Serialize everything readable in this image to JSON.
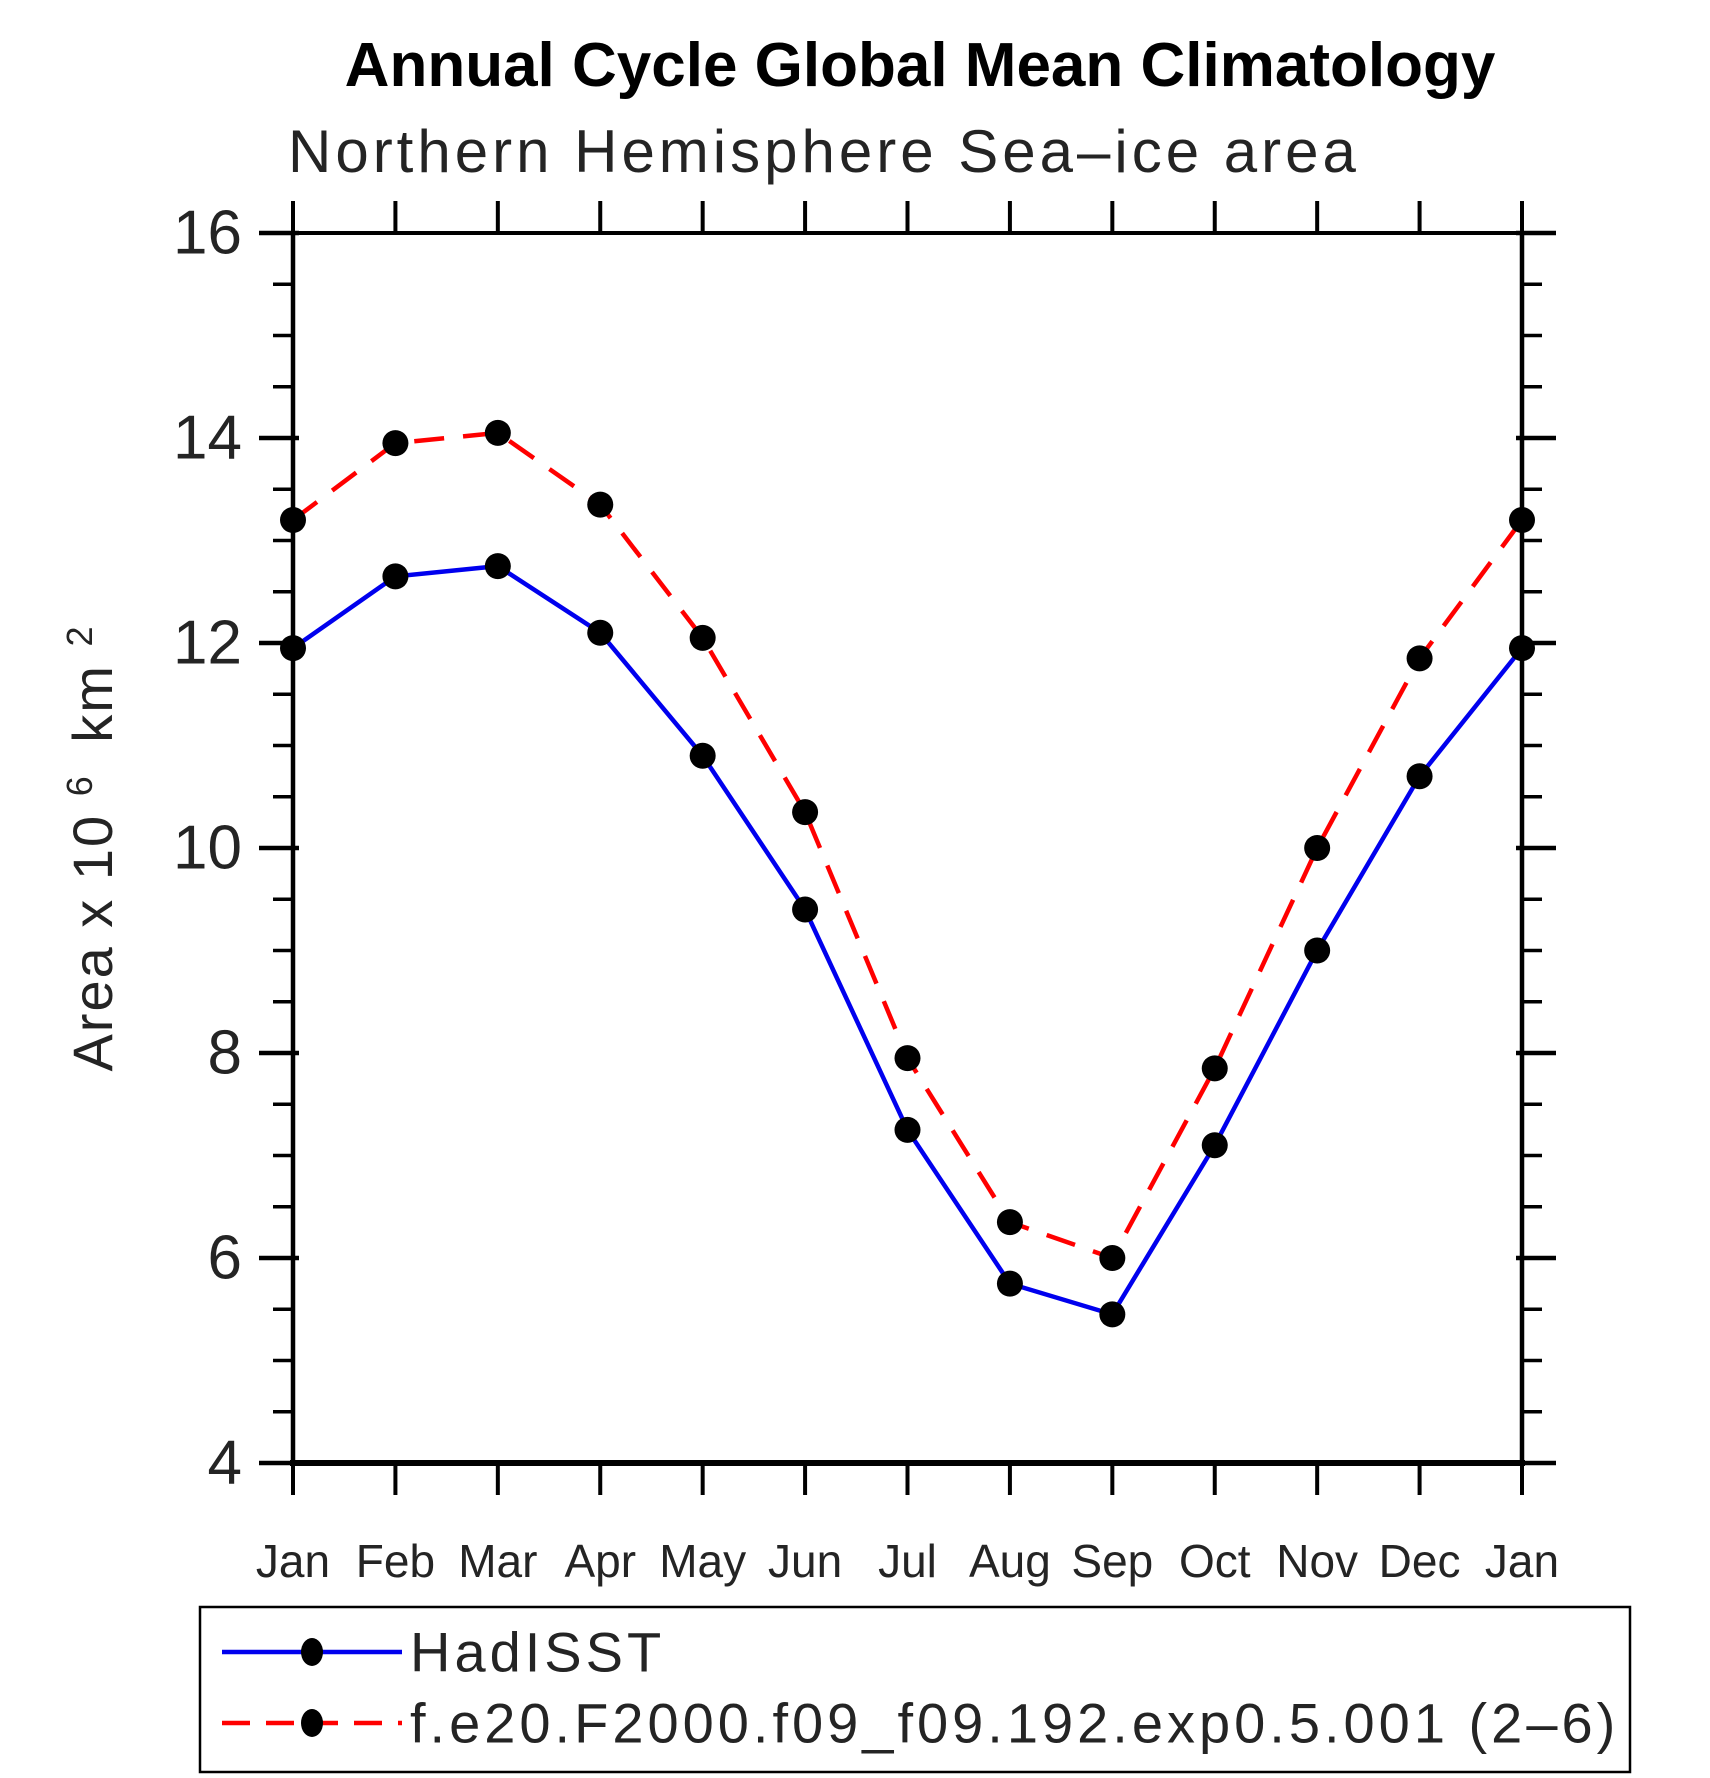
{
  "chart_data": {
    "type": "line",
    "title": "Annual Cycle Global Mean Climatology",
    "subtitle": "Northern Hemisphere Sea–ice area",
    "ylabel": {
      "base": "Area x 10",
      "exp1": "6",
      "unit": "km",
      "exp2": "2"
    },
    "categories": [
      "Jan",
      "Feb",
      "Mar",
      "Apr",
      "May",
      "Jun",
      "Jul",
      "Aug",
      "Sep",
      "Oct",
      "Nov",
      "Dec",
      "Jan"
    ],
    "ylim": [
      4,
      16
    ],
    "ytick_major": [
      16,
      14,
      12,
      10,
      8,
      6,
      4
    ],
    "ytick_minor_step": 0.5,
    "grid": false,
    "legend_position": "bottom-left-box",
    "axis_color": "#000000",
    "marker_color": "#000000",
    "series": [
      {
        "name": "HadISST",
        "color": "#0000ee",
        "style": "solid",
        "marker": "black-dot",
        "values": [
          11.95,
          12.65,
          12.75,
          12.1,
          10.9,
          9.4,
          7.25,
          5.75,
          5.45,
          7.1,
          9.0,
          10.7,
          11.95
        ]
      },
      {
        "name": "f.e20.F2000.f09_f09.192.exp0.5.001 (2–6)",
        "color": "#ff0000",
        "style": "dashed",
        "marker": "black-dot",
        "values": [
          13.2,
          13.95,
          14.05,
          13.35,
          12.05,
          10.35,
          7.95,
          6.35,
          6.0,
          7.85,
          10.0,
          11.85,
          13.2
        ]
      }
    ]
  }
}
